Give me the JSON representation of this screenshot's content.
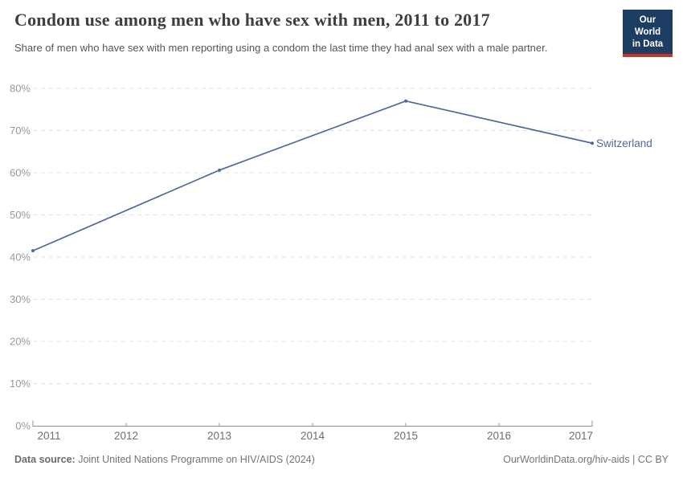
{
  "header": {
    "title": "Condom use among men who have sex with men, 2011 to 2017",
    "subtitle": "Share of men who have sex with men reporting using a condom the last time they had anal sex with a male partner."
  },
  "logo": {
    "line1": "Our World",
    "line2": "in Data",
    "bg_color": "#1d3d63",
    "accent_color": "#c0362c"
  },
  "chart_data": {
    "type": "line",
    "title": "Condom use among men who have sex with men, 2011 to 2017",
    "subtitle": "Share of men who have sex with men reporting using a condom the last time they had anal sex with a male partner.",
    "x": [
      2011,
      2013,
      2015,
      2017
    ],
    "series": [
      {
        "name": "Switzerland",
        "values": [
          41.5,
          60.6,
          77,
          67
        ],
        "color": "#4C6A9C"
      }
    ],
    "xlim": [
      2011,
      2017
    ],
    "ylim": [
      0,
      80
    ],
    "yticks": [
      0,
      10,
      20,
      30,
      40,
      50,
      60,
      70,
      80
    ],
    "ytick_suffix": "%",
    "xticks": [
      2011,
      2012,
      2013,
      2014,
      2015,
      2016,
      2017
    ],
    "grid": "horizontal-dashed",
    "legend_position": "line-end-label",
    "grid_color": "#e0e0e0",
    "axis_color": "#8f8f8f",
    "ylabel_color": "#999999",
    "xlabel_color": "#6e6e6e"
  },
  "footer": {
    "datasource_label": "Data source:",
    "datasource_text": " Joint United Nations Programme on HIV/AIDS (2024)",
    "link_text": "OurWorldinData.org/hiv-aids",
    "separator": " | ",
    "license_text": "CC BY"
  }
}
